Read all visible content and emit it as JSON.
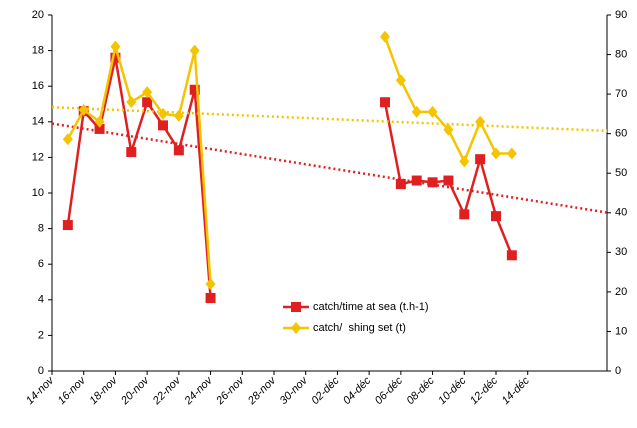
{
  "chart_data": {
    "type": "line",
    "xlim": [
      0,
      35
    ],
    "xticks": [
      {
        "value": 0,
        "label": "14-nov"
      },
      {
        "value": 2,
        "label": "16-nov"
      },
      {
        "value": 4,
        "label": "18-nov"
      },
      {
        "value": 6,
        "label": "20-nov"
      },
      {
        "value": 8,
        "label": "22-nov"
      },
      {
        "value": 10,
        "label": "24-nov"
      },
      {
        "value": 12,
        "label": "26-nov"
      },
      {
        "value": 14,
        "label": "28-nov"
      },
      {
        "value": 16,
        "label": "30-nov"
      },
      {
        "value": 18,
        "label": "02-déc"
      },
      {
        "value": 20,
        "label": "04-déc"
      },
      {
        "value": 22,
        "label": "06-déc"
      },
      {
        "value": 24,
        "label": "08-déc"
      },
      {
        "value": 26,
        "label": "10-déc"
      },
      {
        "value": 28,
        "label": "12-déc"
      },
      {
        "value": 30,
        "label": "14-déc"
      }
    ],
    "ylim": [
      0,
      20
    ],
    "yticks": [
      0,
      2,
      4,
      6,
      8,
      10,
      12,
      14,
      16,
      18,
      20
    ],
    "y2lim": [
      0,
      90
    ],
    "y2ticks": [
      0,
      10,
      20,
      30,
      40,
      50,
      60,
      70,
      80,
      90
    ],
    "x": [
      1,
      2,
      3,
      4,
      5,
      6,
      7,
      8,
      9,
      10,
      null,
      21,
      22,
      23,
      24,
      25,
      26,
      27,
      28,
      29
    ],
    "series": [
      {
        "name": "catch/time at sea (t.h-1)",
        "color": "#e02020",
        "marker": "square",
        "values": [
          8.2,
          14.6,
          13.6,
          17.6,
          12.3,
          15.1,
          13.8,
          12.4,
          15.8,
          4.1,
          null,
          15.1,
          10.5,
          10.7,
          10.6,
          10.7,
          8.8,
          11.9,
          8.7,
          6.5
        ],
        "trend": [
          13.9,
          8.9
        ]
      },
      {
        "name": "catch/  shing set (t)",
        "color": "#f5c400",
        "marker": "diamond",
        "axis": "y2",
        "values": [
          58.6,
          66,
          63,
          82,
          68,
          70.5,
          65,
          64.5,
          81,
          22,
          null,
          84.5,
          73.5,
          65.5,
          65.5,
          61,
          53,
          63,
          55,
          55
        ],
        "trend": [
          66.7,
          60.7
        ]
      }
    ]
  }
}
